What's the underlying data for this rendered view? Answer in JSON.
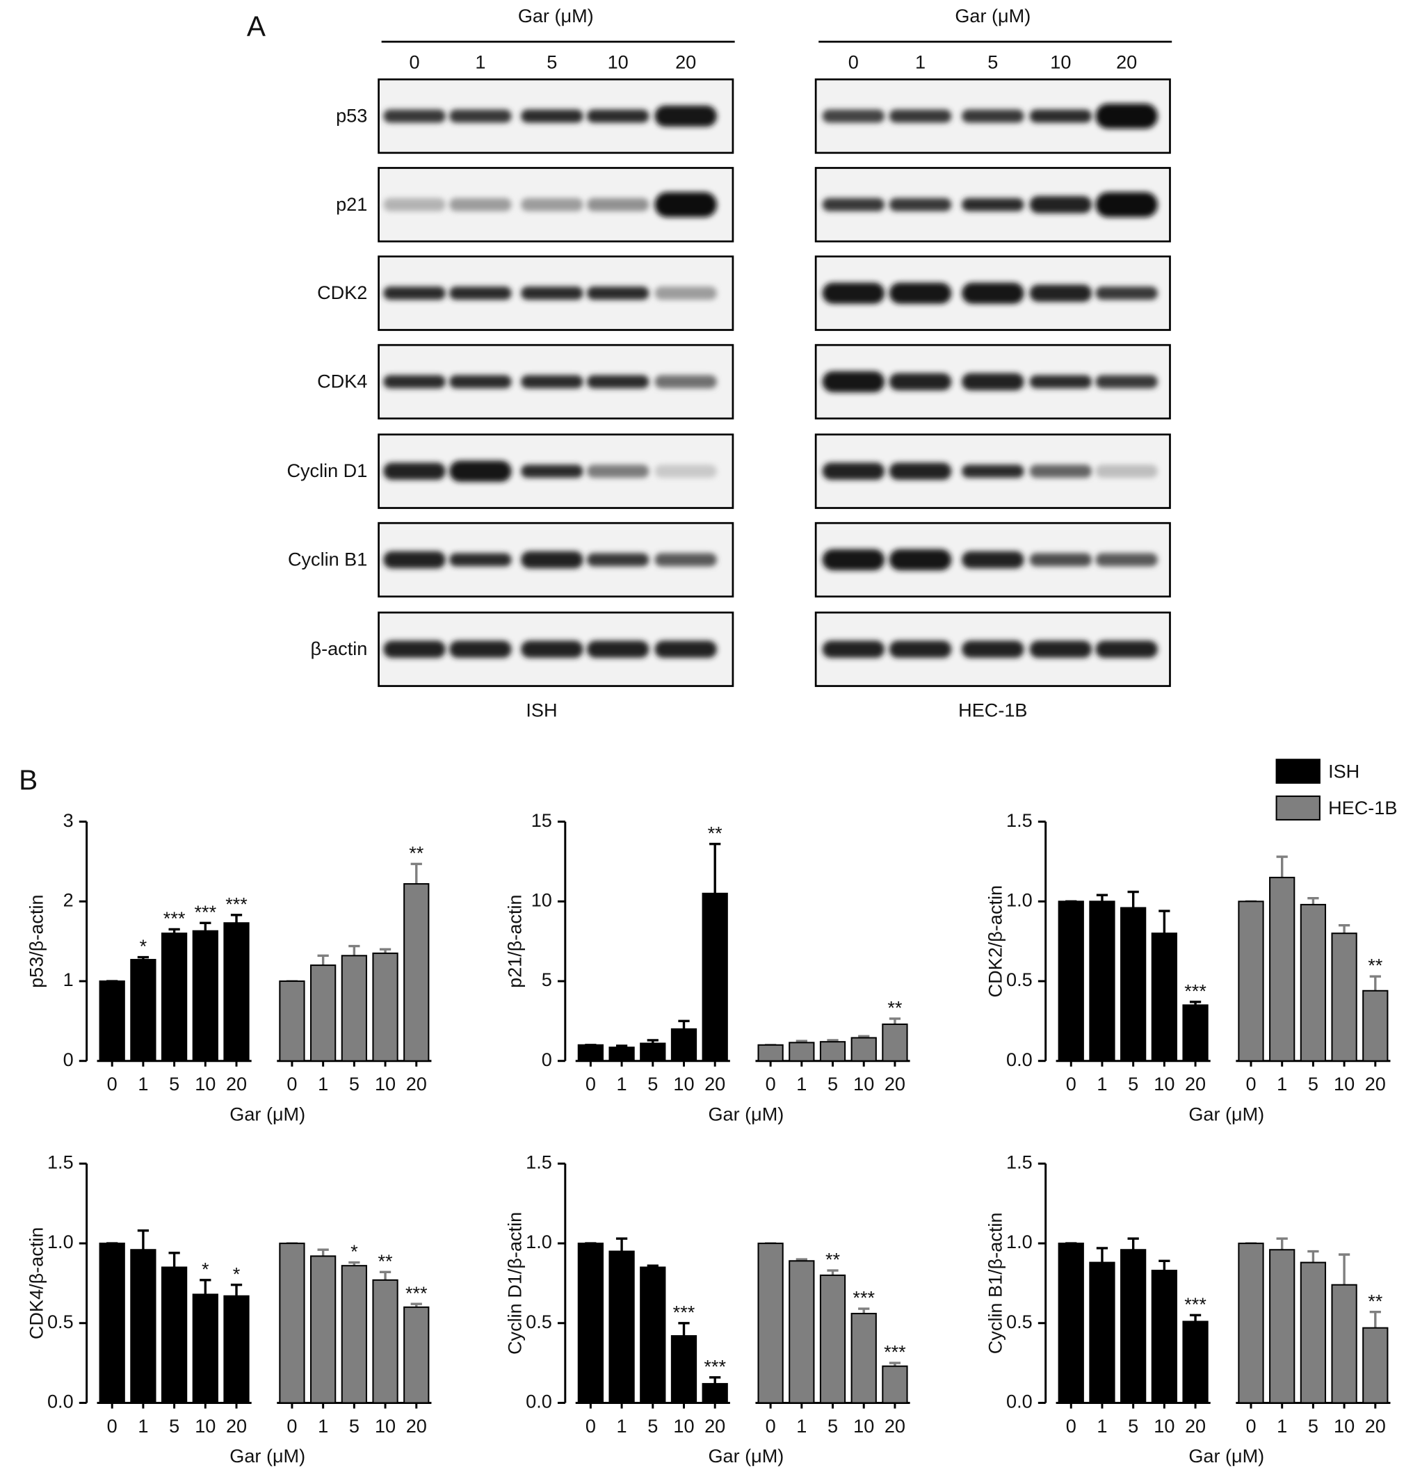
{
  "panel_a": {
    "label": "A",
    "groups": [
      {
        "header": "Gar (μM)",
        "lanes": [
          "0",
          "1",
          "5",
          "10",
          "20"
        ],
        "cell_line": "ISH"
      },
      {
        "header": "Gar (μM)",
        "lanes": [
          "0",
          "1",
          "5",
          "10",
          "20"
        ],
        "cell_line": "HEC-1B"
      }
    ],
    "proteins": [
      "p53",
      "p21",
      "CDK2",
      "CDK4",
      "Cyclin D1",
      "Cyclin B1",
      "β-actin"
    ]
  },
  "panel_b_label": "B",
  "legend": [
    {
      "name": "ISH",
      "color": "#000000"
    },
    {
      "name": "HEC-1B",
      "color": "#7f7f7f"
    }
  ],
  "chart_data": [
    {
      "type": "bar",
      "ylabel": "p53/β-actin",
      "xlabel": "Gar (μM)",
      "categories": [
        "0",
        "1",
        "5",
        "10",
        "20"
      ],
      "ylim": [
        0,
        3
      ],
      "yticks": [
        0,
        1,
        2,
        3
      ],
      "series": [
        {
          "color": "#000000",
          "values": [
            1,
            1.27,
            1.6,
            1.63,
            1.73
          ],
          "errors": [
            0,
            0.03,
            0.05,
            0.1,
            0.1
          ],
          "labels": [
            null,
            "*",
            "***",
            "***",
            "***"
          ]
        },
        {
          "color": "#7f7f7f",
          "values": [
            1,
            1.2,
            1.32,
            1.35,
            2.22
          ],
          "errors": [
            0,
            0.12,
            0.12,
            0.05,
            0.25
          ],
          "labels": [
            null,
            null,
            null,
            null,
            "**"
          ]
        }
      ]
    },
    {
      "type": "bar",
      "ylabel": "p21/β-actin",
      "xlabel": "Gar (μM)",
      "categories": [
        "0",
        "1",
        "5",
        "10",
        "20"
      ],
      "ylim": [
        0,
        15
      ],
      "yticks": [
        0,
        5,
        10,
        15
      ],
      "series": [
        {
          "color": "#000000",
          "values": [
            1,
            0.85,
            1.1,
            2.0,
            10.5
          ],
          "errors": [
            0,
            0.1,
            0.2,
            0.5,
            3.1
          ],
          "labels": [
            null,
            null,
            null,
            null,
            "**"
          ]
        },
        {
          "color": "#7f7f7f",
          "values": [
            1,
            1.15,
            1.2,
            1.45,
            2.3
          ],
          "errors": [
            0,
            0.1,
            0.1,
            0.1,
            0.35
          ],
          "labels": [
            null,
            null,
            null,
            null,
            "**"
          ]
        }
      ]
    },
    {
      "type": "bar",
      "ylabel": "CDK2/β-actin",
      "xlabel": "Gar (μM)",
      "categories": [
        "0",
        "1",
        "5",
        "10",
        "20"
      ],
      "ylim": [
        0,
        1.5
      ],
      "yticks": [
        {
          "value": 0,
          "label": "0.0"
        },
        0.5,
        {
          "value": 1,
          "label": "1.0"
        },
        1.5
      ],
      "series": [
        {
          "color": "#000000",
          "values": [
            1,
            1,
            0.96,
            0.8,
            0.35
          ],
          "errors": [
            0,
            0.04,
            0.1,
            0.14,
            0.02
          ],
          "labels": [
            null,
            null,
            null,
            null,
            "***"
          ]
        },
        {
          "color": "#7f7f7f",
          "values": [
            1,
            1.15,
            0.98,
            0.8,
            0.44
          ],
          "errors": [
            0,
            0.13,
            0.04,
            0.05,
            0.09
          ],
          "labels": [
            null,
            null,
            null,
            null,
            "**"
          ]
        }
      ]
    },
    {
      "type": "bar",
      "ylabel": "CDK4/β-actin",
      "xlabel": "Gar (μM)",
      "categories": [
        "0",
        "1",
        "5",
        "10",
        "20"
      ],
      "ylim": [
        0,
        1.5
      ],
      "yticks": [
        {
          "value": 0,
          "label": "0.0"
        },
        0.5,
        {
          "value": 1,
          "label": "1.0"
        },
        1.5
      ],
      "series": [
        {
          "color": "#000000",
          "values": [
            1,
            0.96,
            0.85,
            0.68,
            0.67
          ],
          "errors": [
            0,
            0.12,
            0.09,
            0.09,
            0.07
          ],
          "labels": [
            null,
            null,
            null,
            "*",
            "*"
          ]
        },
        {
          "color": "#7f7f7f",
          "values": [
            1,
            0.92,
            0.86,
            0.77,
            0.6
          ],
          "errors": [
            0,
            0.04,
            0.02,
            0.05,
            0.02
          ],
          "labels": [
            null,
            null,
            "*",
            "**",
            "***"
          ]
        }
      ]
    },
    {
      "type": "bar",
      "ylabel": "Cyclin D1/β-actin",
      "xlabel": "Gar (μM)",
      "categories": [
        "0",
        "1",
        "5",
        "10",
        "20"
      ],
      "ylim": [
        0,
        1.5
      ],
      "yticks": [
        {
          "value": 0,
          "label": "0.0"
        },
        0.5,
        {
          "value": 1,
          "label": "1.0"
        },
        1.5
      ],
      "series": [
        {
          "color": "#000000",
          "values": [
            1,
            0.95,
            0.85,
            0.42,
            0.12
          ],
          "errors": [
            0,
            0.08,
            0.01,
            0.08,
            0.04
          ],
          "labels": [
            null,
            null,
            null,
            "***",
            "***"
          ]
        },
        {
          "color": "#7f7f7f",
          "values": [
            1,
            0.89,
            0.8,
            0.56,
            0.23
          ],
          "errors": [
            0,
            0.01,
            0.03,
            0.03,
            0.02
          ],
          "labels": [
            null,
            null,
            "**",
            "***",
            "***"
          ]
        }
      ]
    },
    {
      "type": "bar",
      "ylabel": "Cyclin B1/β-actin",
      "xlabel": "Gar (μM)",
      "categories": [
        "0",
        "1",
        "5",
        "10",
        "20"
      ],
      "ylim": [
        0,
        1.5
      ],
      "yticks": [
        {
          "value": 0,
          "label": "0.0"
        },
        0.5,
        {
          "value": 1,
          "label": "1.0"
        },
        1.5
      ],
      "series": [
        {
          "color": "#000000",
          "values": [
            1,
            0.88,
            0.96,
            0.83,
            0.51
          ],
          "errors": [
            0,
            0.09,
            0.07,
            0.06,
            0.04
          ],
          "labels": [
            null,
            null,
            null,
            null,
            "***"
          ]
        },
        {
          "color": "#7f7f7f",
          "values": [
            1,
            0.96,
            0.88,
            0.74,
            0.47
          ],
          "errors": [
            0,
            0.07,
            0.07,
            0.19,
            0.1
          ],
          "labels": [
            null,
            null,
            null,
            null,
            "**"
          ]
        }
      ]
    }
  ]
}
